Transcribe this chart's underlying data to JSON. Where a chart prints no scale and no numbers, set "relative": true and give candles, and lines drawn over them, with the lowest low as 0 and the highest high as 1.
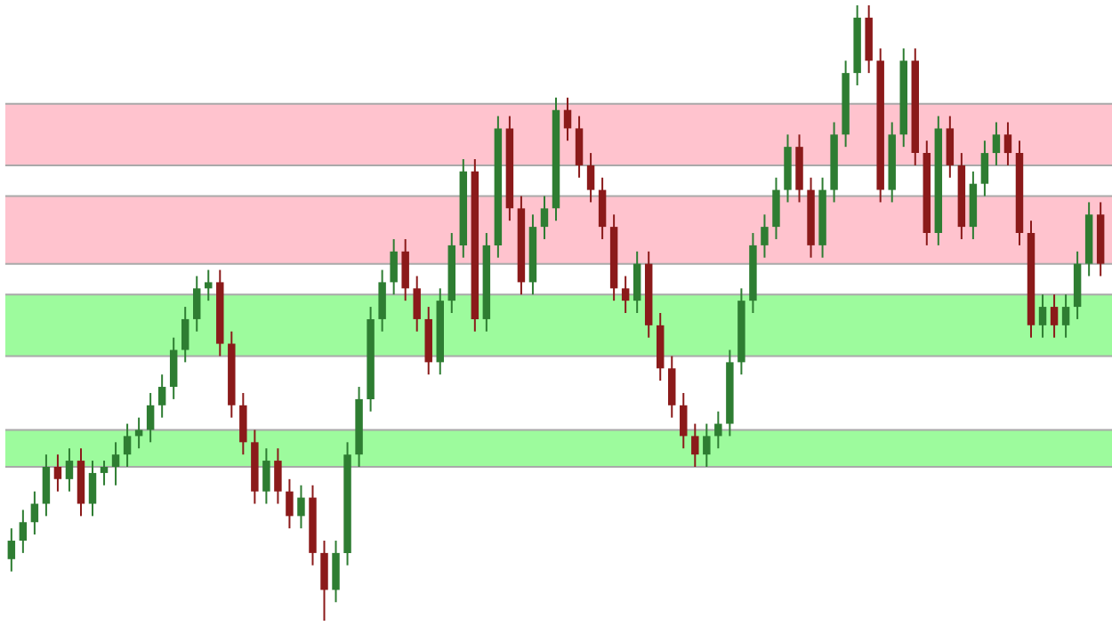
{
  "chart_data": {
    "type": "candlestick",
    "relative": true,
    "categories": [
      null,
      null,
      null,
      null,
      null,
      null,
      null,
      null,
      null,
      null,
      null,
      null,
      null,
      null,
      null,
      null,
      null,
      null,
      null,
      null,
      null,
      null,
      null,
      null,
      null,
      null,
      null,
      null,
      null,
      null,
      null,
      null,
      null,
      null,
      null,
      null,
      null,
      null,
      null,
      null,
      null,
      null,
      null,
      null,
      null,
      null,
      null,
      null,
      null,
      null,
      null,
      null,
      null,
      null,
      null,
      null,
      null,
      null,
      null,
      null,
      null,
      null,
      null,
      null,
      null,
      null,
      null,
      null,
      null,
      null,
      null,
      null,
      null,
      null,
      null,
      null,
      null,
      null,
      null,
      null,
      null,
      null,
      null,
      null,
      null,
      null,
      null,
      null,
      null,
      null,
      null,
      null,
      null,
      null,
      null
    ],
    "ohlc": [
      [
        0.1,
        0.15,
        0.08,
        0.13
      ],
      [
        0.13,
        0.18,
        0.11,
        0.16
      ],
      [
        0.16,
        0.21,
        0.14,
        0.19
      ],
      [
        0.19,
        0.27,
        0.17,
        0.25
      ],
      [
        0.25,
        0.27,
        0.21,
        0.23
      ],
      [
        0.23,
        0.28,
        0.21,
        0.26
      ],
      [
        0.26,
        0.28,
        0.17,
        0.19
      ],
      [
        0.19,
        0.26,
        0.17,
        0.24
      ],
      [
        0.24,
        0.26,
        0.22,
        0.25
      ],
      [
        0.25,
        0.29,
        0.22,
        0.27
      ],
      [
        0.27,
        0.32,
        0.25,
        0.3
      ],
      [
        0.3,
        0.33,
        0.28,
        0.31
      ],
      [
        0.31,
        0.37,
        0.29,
        0.35
      ],
      [
        0.35,
        0.4,
        0.33,
        0.38
      ],
      [
        0.38,
        0.46,
        0.36,
        0.44
      ],
      [
        0.44,
        0.51,
        0.42,
        0.49
      ],
      [
        0.49,
        0.56,
        0.47,
        0.54
      ],
      [
        0.54,
        0.57,
        0.52,
        0.55
      ],
      [
        0.55,
        0.57,
        0.43,
        0.45
      ],
      [
        0.45,
        0.47,
        0.33,
        0.35
      ],
      [
        0.35,
        0.37,
        0.27,
        0.29
      ],
      [
        0.29,
        0.31,
        0.19,
        0.21
      ],
      [
        0.21,
        0.28,
        0.19,
        0.26
      ],
      [
        0.26,
        0.28,
        0.19,
        0.21
      ],
      [
        0.21,
        0.23,
        0.15,
        0.17
      ],
      [
        0.17,
        0.22,
        0.15,
        0.2
      ],
      [
        0.2,
        0.22,
        0.09,
        0.11
      ],
      [
        0.11,
        0.13,
        0.0,
        0.05
      ],
      [
        0.05,
        0.13,
        0.03,
        0.11
      ],
      [
        0.11,
        0.29,
        0.09,
        0.27
      ],
      [
        0.27,
        0.38,
        0.25,
        0.36
      ],
      [
        0.36,
        0.51,
        0.34,
        0.49
      ],
      [
        0.49,
        0.57,
        0.47,
        0.55
      ],
      [
        0.55,
        0.62,
        0.53,
        0.6
      ],
      [
        0.6,
        0.62,
        0.52,
        0.54
      ],
      [
        0.54,
        0.56,
        0.47,
        0.49
      ],
      [
        0.49,
        0.51,
        0.4,
        0.42
      ],
      [
        0.42,
        0.54,
        0.4,
        0.52
      ],
      [
        0.52,
        0.63,
        0.5,
        0.61
      ],
      [
        0.61,
        0.75,
        0.59,
        0.73
      ],
      [
        0.73,
        0.75,
        0.47,
        0.49
      ],
      [
        0.49,
        0.63,
        0.47,
        0.61
      ],
      [
        0.61,
        0.82,
        0.59,
        0.8
      ],
      [
        0.8,
        0.82,
        0.65,
        0.67
      ],
      [
        0.67,
        0.69,
        0.53,
        0.55
      ],
      [
        0.55,
        0.66,
        0.53,
        0.64
      ],
      [
        0.64,
        0.69,
        0.62,
        0.67
      ],
      [
        0.67,
        0.85,
        0.65,
        0.83
      ],
      [
        0.83,
        0.85,
        0.78,
        0.8
      ],
      [
        0.8,
        0.82,
        0.72,
        0.74
      ],
      [
        0.74,
        0.76,
        0.68,
        0.7
      ],
      [
        0.7,
        0.72,
        0.62,
        0.64
      ],
      [
        0.64,
        0.66,
        0.52,
        0.54
      ],
      [
        0.54,
        0.56,
        0.5,
        0.52
      ],
      [
        0.52,
        0.6,
        0.5,
        0.58
      ],
      [
        0.58,
        0.6,
        0.46,
        0.48
      ],
      [
        0.48,
        0.5,
        0.39,
        0.41
      ],
      [
        0.41,
        0.43,
        0.33,
        0.35
      ],
      [
        0.35,
        0.37,
        0.28,
        0.3
      ],
      [
        0.3,
        0.32,
        0.25,
        0.27
      ],
      [
        0.27,
        0.32,
        0.25,
        0.3
      ],
      [
        0.3,
        0.34,
        0.28,
        0.32
      ],
      [
        0.32,
        0.44,
        0.3,
        0.42
      ],
      [
        0.42,
        0.54,
        0.4,
        0.52
      ],
      [
        0.52,
        0.63,
        0.5,
        0.61
      ],
      [
        0.61,
        0.66,
        0.59,
        0.64
      ],
      [
        0.64,
        0.72,
        0.62,
        0.7
      ],
      [
        0.7,
        0.79,
        0.68,
        0.77
      ],
      [
        0.77,
        0.79,
        0.68,
        0.7
      ],
      [
        0.7,
        0.72,
        0.59,
        0.61
      ],
      [
        0.61,
        0.72,
        0.59,
        0.7
      ],
      [
        0.7,
        0.81,
        0.68,
        0.79
      ],
      [
        0.79,
        0.91,
        0.77,
        0.89
      ],
      [
        0.89,
        1.0,
        0.87,
        0.98
      ],
      [
        0.98,
        1.0,
        0.89,
        0.91
      ],
      [
        0.91,
        0.93,
        0.68,
        0.7
      ],
      [
        0.7,
        0.81,
        0.68,
        0.79
      ],
      [
        0.79,
        0.93,
        0.77,
        0.91
      ],
      [
        0.91,
        0.93,
        0.74,
        0.76
      ],
      [
        0.76,
        0.78,
        0.61,
        0.63
      ],
      [
        0.63,
        0.82,
        0.61,
        0.8
      ],
      [
        0.8,
        0.82,
        0.72,
        0.74
      ],
      [
        0.74,
        0.76,
        0.62,
        0.64
      ],
      [
        0.64,
        0.73,
        0.62,
        0.71
      ],
      [
        0.71,
        0.78,
        0.69,
        0.76
      ],
      [
        0.76,
        0.81,
        0.74,
        0.79
      ],
      [
        0.79,
        0.81,
        0.74,
        0.76
      ],
      [
        0.76,
        0.78,
        0.61,
        0.63
      ],
      [
        0.63,
        0.65,
        0.46,
        0.48
      ],
      [
        0.48,
        0.53,
        0.46,
        0.51
      ],
      [
        0.51,
        0.53,
        0.46,
        0.48
      ],
      [
        0.48,
        0.53,
        0.46,
        0.51
      ],
      [
        0.51,
        0.6,
        0.49,
        0.58
      ],
      [
        0.58,
        0.68,
        0.56,
        0.66
      ],
      [
        0.66,
        0.68,
        0.56,
        0.58
      ]
    ],
    "colors": [
      "#2e7d32",
      "#2e7d32",
      "#2e7d32",
      "#2e7d32",
      "#8b1a1a",
      "#2e7d32",
      "#8b1a1a",
      "#2e7d32",
      "#2e7d32",
      "#2e7d32",
      "#2e7d32",
      "#2e7d32",
      "#2e7d32",
      "#2e7d32",
      "#2e7d32",
      "#2e7d32",
      "#2e7d32",
      "#2e7d32",
      "#8b1a1a",
      "#8b1a1a",
      "#8b1a1a",
      "#8b1a1a",
      "#2e7d32",
      "#8b1a1a",
      "#8b1a1a",
      "#2e7d32",
      "#8b1a1a",
      "#8b1a1a",
      "#2e7d32",
      "#2e7d32",
      "#2e7d32",
      "#2e7d32",
      "#2e7d32",
      "#2e7d32",
      "#8b1a1a",
      "#8b1a1a",
      "#8b1a1a",
      "#2e7d32",
      "#2e7d32",
      "#2e7d32",
      "#8b1a1a",
      "#2e7d32",
      "#2e7d32",
      "#8b1a1a",
      "#8b1a1a",
      "#2e7d32",
      "#2e7d32",
      "#2e7d32",
      "#8b1a1a",
      "#8b1a1a",
      "#8b1a1a",
      "#8b1a1a",
      "#8b1a1a",
      "#8b1a1a",
      "#2e7d32",
      "#8b1a1a",
      "#8b1a1a",
      "#8b1a1a",
      "#8b1a1a",
      "#8b1a1a",
      "#2e7d32",
      "#2e7d32",
      "#2e7d32",
      "#2e7d32",
      "#2e7d32",
      "#2e7d32",
      "#2e7d32",
      "#2e7d32",
      "#8b1a1a",
      "#8b1a1a",
      "#2e7d32",
      "#2e7d32",
      "#2e7d32",
      "#2e7d32",
      "#8b1a1a",
      "#8b1a1a",
      "#2e7d32",
      "#2e7d32",
      "#8b1a1a",
      "#8b1a1a",
      "#2e7d32",
      "#8b1a1a",
      "#8b1a1a",
      "#2e7d32",
      "#2e7d32",
      "#2e7d32",
      "#8b1a1a",
      "#8b1a1a",
      "#8b1a1a",
      "#2e7d32",
      "#8b1a1a",
      "#2e7d32",
      "#2e7d32",
      "#2e7d32",
      "#8b1a1a"
    ],
    "bands": [
      {
        "axis": "y",
        "from": 0.74,
        "to": 0.84,
        "color": "#ffc0cb"
      },
      {
        "axis": "y",
        "from": 0.58,
        "to": 0.69,
        "color": "#ffc0cb"
      },
      {
        "axis": "y",
        "from": 0.43,
        "to": 0.53,
        "color": "#98fb98"
      },
      {
        "axis": "y",
        "from": 0.25,
        "to": 0.31,
        "color": "#98fb98"
      }
    ],
    "ref_lines": [
      {
        "axis": "y",
        "value": 0.84,
        "color": "#a9a9a9"
      },
      {
        "axis": "y",
        "value": 0.74,
        "color": "#a9a9a9"
      },
      {
        "axis": "y",
        "value": 0.69,
        "color": "#a9a9a9"
      },
      {
        "axis": "y",
        "value": 0.58,
        "color": "#a9a9a9"
      },
      {
        "axis": "y",
        "value": 0.53,
        "color": "#a9a9a9"
      },
      {
        "axis": "y",
        "value": 0.43,
        "color": "#a9a9a9"
      },
      {
        "axis": "y",
        "value": 0.31,
        "color": "#a9a9a9"
      },
      {
        "axis": "y",
        "value": 0.25,
        "color": "#a9a9a9"
      }
    ]
  }
}
